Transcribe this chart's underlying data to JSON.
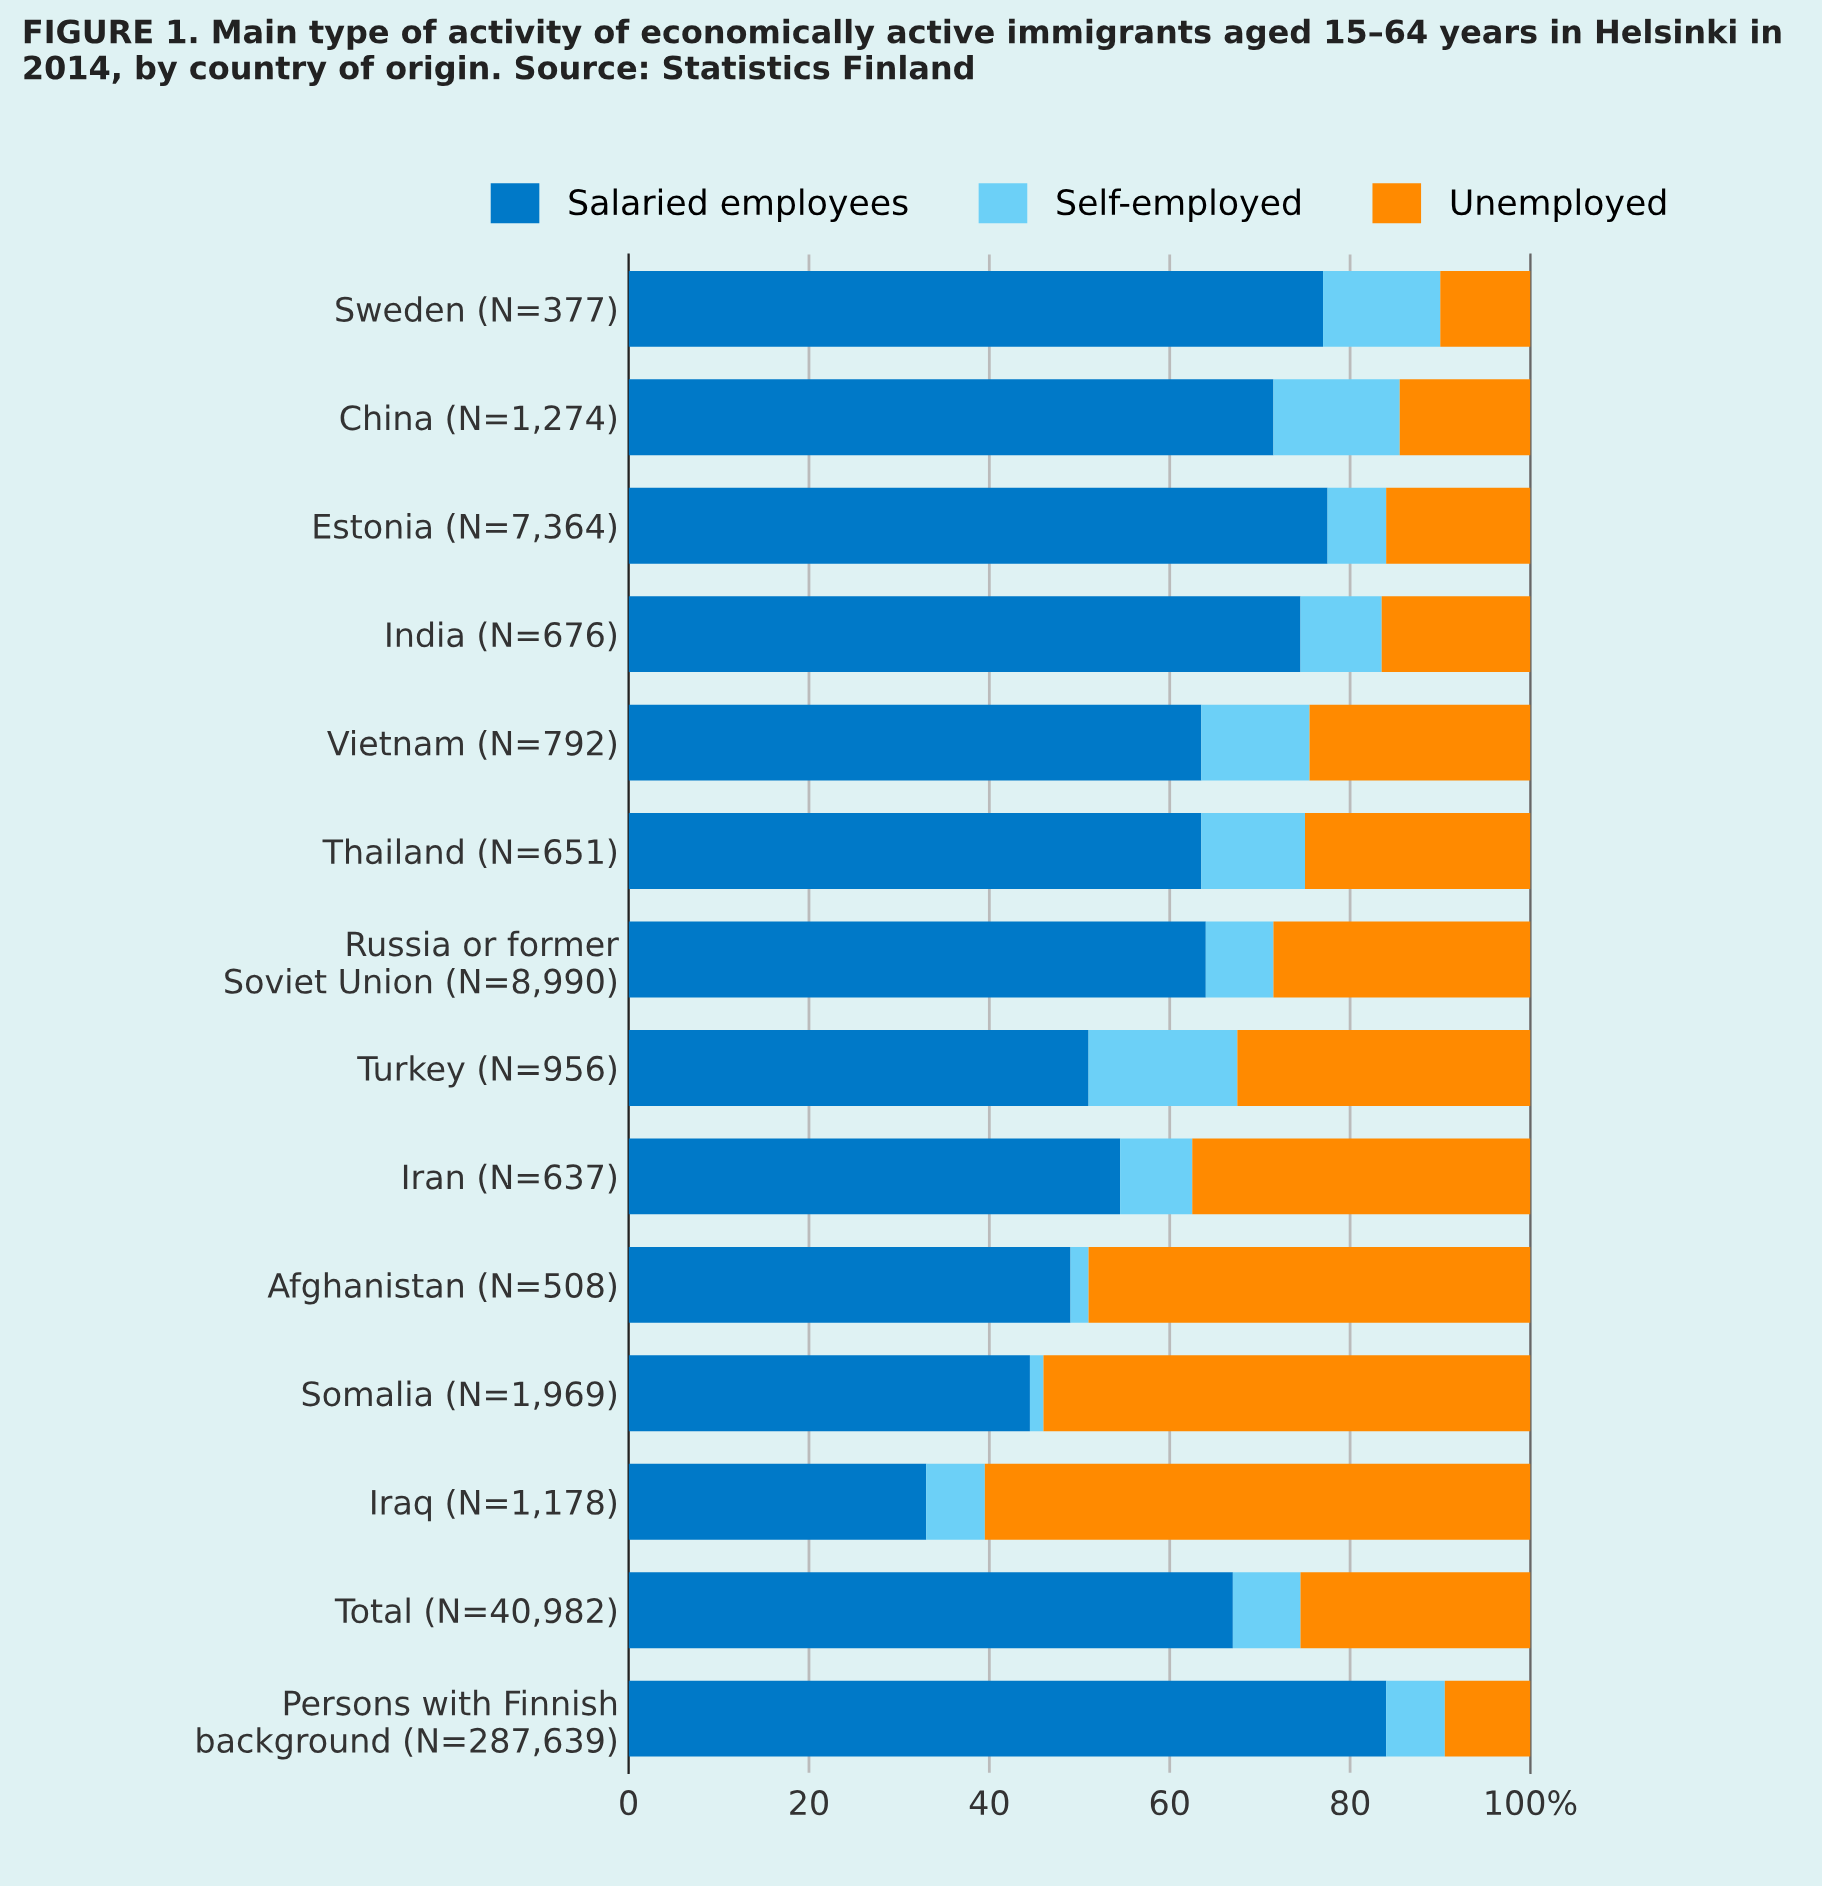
{
  "chart_data": {
    "type": "bar",
    "orientation": "horizontal",
    "stacked": true,
    "title": "FIGURE 1. Main type of activity of economically active immigrants aged 15–64 years in Helsinki in 2014, by country of origin. Source: Statistics Finland",
    "categories": [
      "Sweden (N=377)",
      "China (N=1,274)",
      "Estonia (N=7,364)",
      "India (N=676)",
      "Vietnam (N=792)",
      "Thailand (N=651)",
      "Russia or former\nSoviet Union (N=8,990)",
      "Turkey (N=956)",
      "Iran (N=637)",
      "Afghanistan (N=508)",
      "Somalia (N=1,969)",
      "Iraq (N=1,178)",
      "Total (N=40,982)",
      "Persons with Finnish\nbackground (N=287,639)"
    ],
    "series": [
      {
        "name": "Salaried employees",
        "color": "#0079c8",
        "values": [
          77,
          71.5,
          77.5,
          74.5,
          63.5,
          63.5,
          64,
          51,
          54.5,
          49,
          44.5,
          33,
          67,
          84
        ]
      },
      {
        "name": "Self-employed",
        "color": "#6cd0f7",
        "values": [
          13,
          14,
          6.5,
          9,
          12,
          11.5,
          7.5,
          16.5,
          8,
          2,
          1.5,
          6.5,
          7.5,
          6.5
        ]
      },
      {
        "name": "Unemployed",
        "color": "#ff8a00",
        "values": [
          10,
          14.5,
          16,
          16.5,
          24.5,
          25,
          28.5,
          32.5,
          37.5,
          49,
          54,
          60.5,
          25.5,
          9.5
        ]
      }
    ],
    "xlim": [
      0,
      100
    ],
    "xticks": [
      0,
      20,
      40,
      60,
      80,
      {
        "value": 100,
        "label": "100%"
      }
    ],
    "grid": "x",
    "legend": "top"
  }
}
